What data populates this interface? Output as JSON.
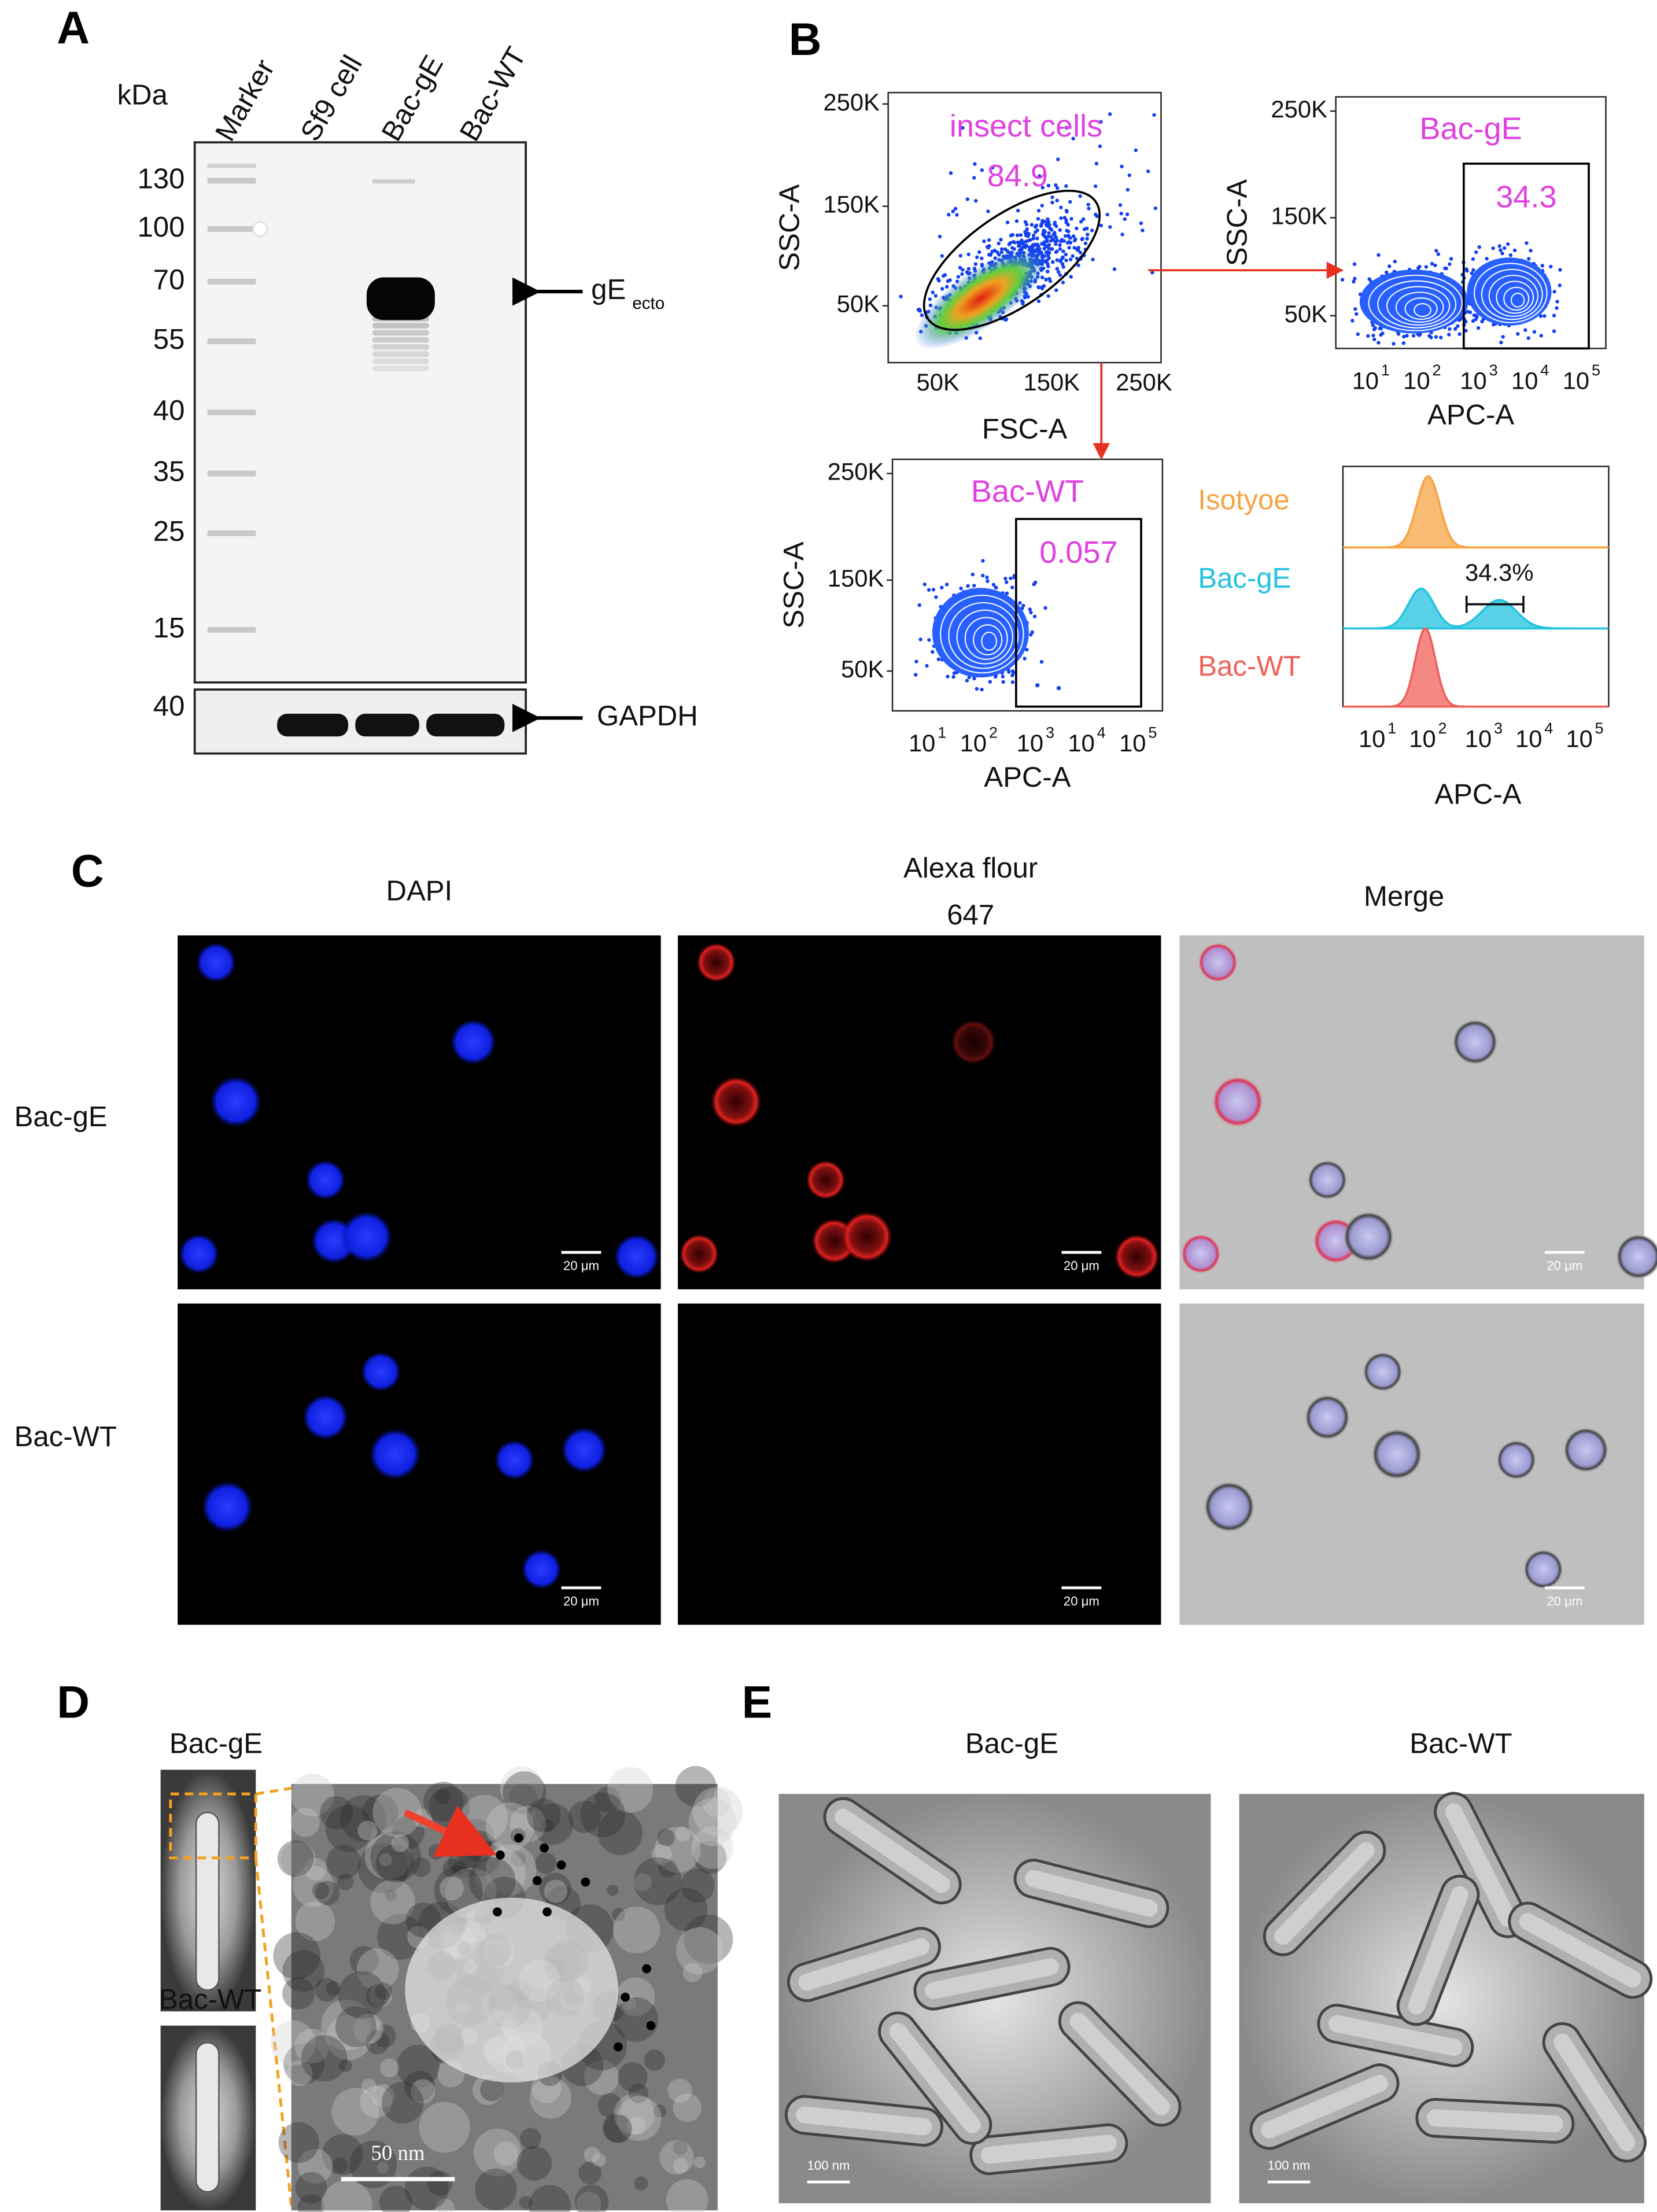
{
  "panel_a": {
    "letter": "A",
    "unit": "kDa",
    "lanes": [
      "Marker",
      "Sf9 cell",
      "Bac-gE",
      "Bac-WT"
    ],
    "markers": [
      "130",
      "100",
      "70",
      "55",
      "40",
      "35",
      "25",
      "15"
    ],
    "gapdh_marker": "40",
    "band_label": "gE",
    "band_label_sub": "ecto",
    "loading_label": "GAPDH"
  },
  "panel_b": {
    "letter": "B",
    "log_base": "10",
    "log_exponents": [
      "1",
      "2",
      "3",
      "4",
      "5"
    ],
    "plots": [
      {
        "title": "insect cells",
        "gate_value": "84.9",
        "y_label": "SSC-A",
        "x_label": "FSC-A",
        "yticks": [
          "250K",
          "150K",
          "50K"
        ],
        "xticks": [
          "50K",
          "150K",
          "250K"
        ]
      },
      {
        "title": "Bac-gE",
        "gate_value": "34.3",
        "y_label": "SSC-A",
        "x_label": "APC-A",
        "yticks": [
          "250K",
          "150K",
          "50K"
        ]
      },
      {
        "title": "Bac-WT",
        "gate_value": "0.057",
        "y_label": "SSC-A",
        "x_label": "APC-A",
        "yticks": [
          "250K",
          "150K",
          "50K"
        ]
      }
    ],
    "histogram": {
      "series": [
        {
          "name": "Isotyoe",
          "color": "#f5a444"
        },
        {
          "name": "Bac-gE",
          "color": "#22c3e0"
        },
        {
          "name": "Bac-WT",
          "color": "#f0605a"
        }
      ],
      "gate_label": "34.3%",
      "x_label": "APC-A"
    }
  },
  "panel_c": {
    "letter": "C",
    "columns": [
      [
        "DAPI"
      ],
      [
        "Alexa flour",
        "647"
      ],
      [
        "Merge"
      ]
    ],
    "rows": [
      "Bac-gE",
      "Bac-WT"
    ],
    "scale_bar": "20 μm"
  },
  "panel_d": {
    "letter": "D",
    "labels": [
      "Bac-gE",
      "Bac-WT"
    ],
    "scale_bar": "50 nm"
  },
  "panel_e": {
    "letter": "E",
    "columns": [
      "Bac-gE",
      "Bac-WT"
    ],
    "scale_bar": "100 nm"
  }
}
